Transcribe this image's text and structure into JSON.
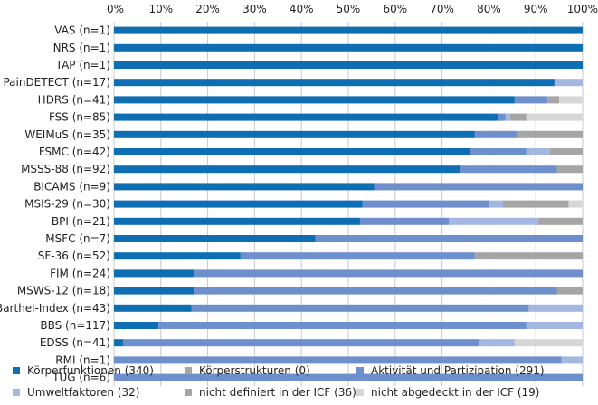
{
  "chart_data": {
    "type": "bar",
    "orientation": "horizontal",
    "stacked": true,
    "normalized": true,
    "title": "",
    "xlabel": "",
    "ylabel": "",
    "xlim": [
      0,
      100
    ],
    "x_ticks": [
      "0%",
      "10%",
      "20%",
      "30%",
      "40%",
      "50%",
      "60%",
      "70%",
      "80%",
      "90%",
      "100%"
    ],
    "legend_position": "bottom",
    "categories": [
      "VAS (n=1)",
      "NRS (n=1)",
      "TAP (n=1)",
      "PainDETECT (n=17)",
      "HDRS (n=41)",
      "FSS (n=85)",
      "WEIMuS (n=35)",
      "FSMC (n=42)",
      "MSSS-88 (n=92)",
      "BICAMS (n=9)",
      "MSIS-29 (n=30)",
      "BPI (n=21)",
      "MSFC (n=7)",
      "SF-36 (n=52)",
      "FIM (n=24)",
      "MSWS-12 (n=18)",
      "Barthel-Index (n=43)",
      "BBS (n=117)",
      "EDSS (n=41)",
      "RMI (n=1)",
      "TUG (n=6)"
    ],
    "series": [
      {
        "name": "Körperfunktionen (340)",
        "color": "#0e6eb4",
        "values": [
          100,
          100,
          100,
          94,
          85.5,
          82,
          77,
          76,
          74,
          55.5,
          53,
          52.5,
          43,
          27,
          17,
          17,
          16.5,
          9.5,
          2,
          0,
          0
        ]
      },
      {
        "name": "Körperstrukturen (0)",
        "color": "#a5a6a8",
        "values": [
          0,
          0,
          0,
          0,
          0,
          0,
          0,
          0,
          0,
          0,
          0,
          0,
          0,
          0,
          0,
          0,
          0,
          0,
          0,
          0,
          0
        ]
      },
      {
        "name": "Aktivität und Partizipation (291)",
        "color": "#6d8fcb",
        "values": [
          0,
          0,
          0,
          0,
          7,
          1.5,
          9,
          12,
          20.5,
          44.5,
          27,
          19,
          57,
          50,
          83,
          77.5,
          72,
          78.5,
          76,
          95.5,
          100
        ]
      },
      {
        "name": "Umweltfaktoren (32)",
        "color": "#a3b7e0",
        "values": [
          0,
          0,
          0,
          6,
          0,
          1,
          0,
          5,
          0,
          0,
          3,
          19,
          0,
          0,
          0,
          0,
          11.5,
          12,
          7.5,
          4.5,
          0
        ]
      },
      {
        "name": "nicht definiert in der ICF (36)",
        "color": "#a5a5a5",
        "values": [
          0,
          0,
          0,
          0,
          2.5,
          3.5,
          14,
          7,
          5.5,
          0,
          14,
          9.5,
          0,
          23,
          0,
          5.5,
          0,
          0,
          0,
          0,
          0
        ]
      },
      {
        "name": "nicht abgedeckt in der ICF (19)",
        "color": "#d6d6d6",
        "values": [
          0,
          0,
          0,
          0,
          5,
          12,
          0,
          0,
          0,
          0,
          3,
          0,
          0,
          0,
          0,
          0,
          0,
          0,
          14.5,
          0,
          0
        ]
      }
    ]
  }
}
